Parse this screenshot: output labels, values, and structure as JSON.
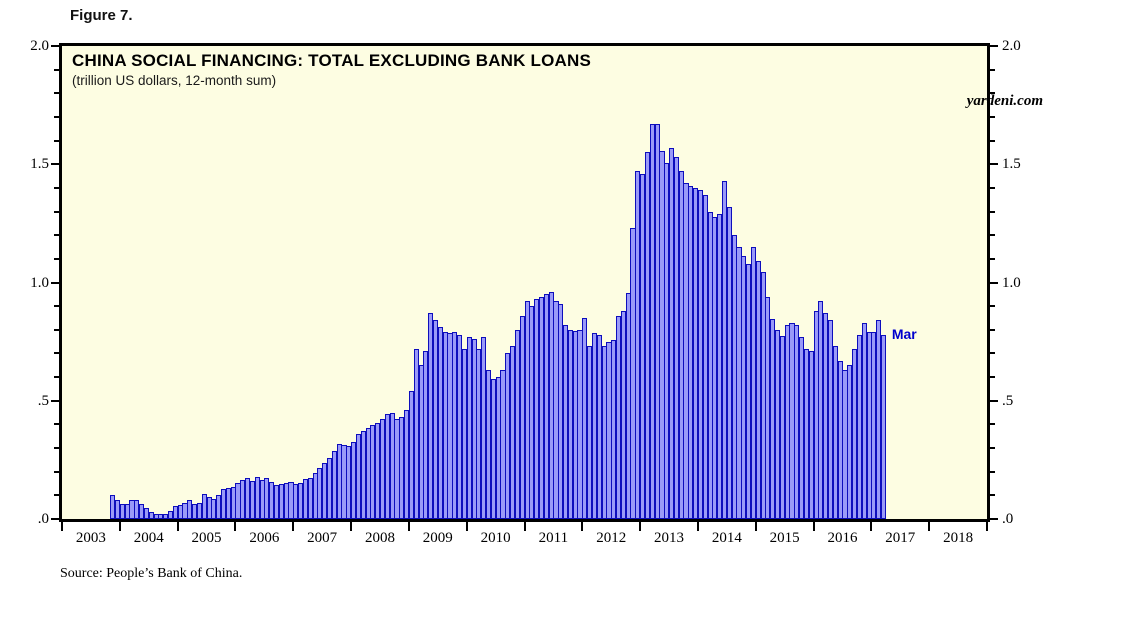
{
  "figure_label": "Figure 7.",
  "header": {
    "title": "CHINA SOCIAL FINANCING: TOTAL EXCLUDING BANK LOANS",
    "subtitle": "(trillion US dollars, 12-month sum)",
    "watermark": "yardeni.com"
  },
  "footer": {
    "source": "Source: People’s Bank of China."
  },
  "colors": {
    "plot_background": "#fdfde2",
    "bar_fill": "#9a9af8",
    "bar_border": "#0d0dbd",
    "axis": "#000000",
    "annotation_blue": "#0000cd"
  },
  "chart_data": {
    "type": "bar",
    "title": "CHINA SOCIAL FINANCING: TOTAL EXCLUDING BANK LOANS",
    "subtitle": "(trillion US dollars, 12-month sum)",
    "ylabel": "trillion US dollars, 12-month sum",
    "ylim": [
      0,
      2.0
    ],
    "y_major_ticks": [
      2.0,
      1.5,
      1.0,
      0.5,
      0.0
    ],
    "y_major_tick_labels": [
      "2.0",
      "1.5",
      "1.0",
      ".5",
      ".0"
    ],
    "y_minor_step": 0.1,
    "y_axis_sides": "both",
    "grid": "off",
    "x_range_years": [
      2003,
      2019
    ],
    "x_tick_labels": [
      "2003",
      "2004",
      "2005",
      "2006",
      "2007",
      "2008",
      "2009",
      "2010",
      "2011",
      "2012",
      "2013",
      "2014",
      "2015",
      "2016",
      "2017",
      "2018"
    ],
    "last_point_annotation": "Mar",
    "series": [
      {
        "name": "total_social_financing_excluding_bank_loans",
        "start_month": "2003-11",
        "end_month": "2017-03",
        "monthly_values": [
          0.1,
          0.08,
          0.065,
          0.065,
          0.08,
          0.08,
          0.065,
          0.045,
          0.03,
          0.022,
          0.02,
          0.022,
          0.035,
          0.055,
          0.06,
          0.067,
          0.082,
          0.064,
          0.068,
          0.105,
          0.092,
          0.086,
          0.1,
          0.125,
          0.133,
          0.136,
          0.152,
          0.163,
          0.172,
          0.161,
          0.177,
          0.167,
          0.172,
          0.155,
          0.145,
          0.15,
          0.154,
          0.157,
          0.146,
          0.153,
          0.17,
          0.175,
          0.195,
          0.216,
          0.238,
          0.258,
          0.288,
          0.317,
          0.312,
          0.308,
          0.325,
          0.358,
          0.372,
          0.383,
          0.396,
          0.405,
          0.425,
          0.442,
          0.45,
          0.425,
          0.433,
          0.46,
          0.54,
          0.72,
          0.65,
          0.71,
          0.87,
          0.84,
          0.81,
          0.79,
          0.785,
          0.79,
          0.78,
          0.72,
          0.77,
          0.76,
          0.72,
          0.77,
          0.63,
          0.59,
          0.6,
          0.63,
          0.7,
          0.73,
          0.8,
          0.86,
          0.92,
          0.9,
          0.93,
          0.94,
          0.95,
          0.96,
          0.92,
          0.91,
          0.82,
          0.8,
          0.795,
          0.8,
          0.85,
          0.73,
          0.785,
          0.78,
          0.73,
          0.75,
          0.755,
          0.86,
          0.88,
          0.955,
          1.23,
          1.47,
          1.46,
          1.55,
          1.67,
          1.67,
          1.555,
          1.505,
          1.57,
          1.53,
          1.47,
          1.42,
          1.41,
          1.4,
          1.39,
          1.37,
          1.3,
          1.275,
          1.29,
          1.43,
          1.32,
          1.2,
          1.15,
          1.11,
          1.08,
          1.15,
          1.09,
          1.045,
          0.94,
          0.845,
          0.8,
          0.775,
          0.82,
          0.83,
          0.82,
          0.77,
          0.72,
          0.71,
          0.88,
          0.92,
          0.87,
          0.84,
          0.73,
          0.67,
          0.63,
          0.65,
          0.72,
          0.78,
          0.83,
          0.79,
          0.79,
          0.84,
          0.78
        ]
      }
    ]
  }
}
